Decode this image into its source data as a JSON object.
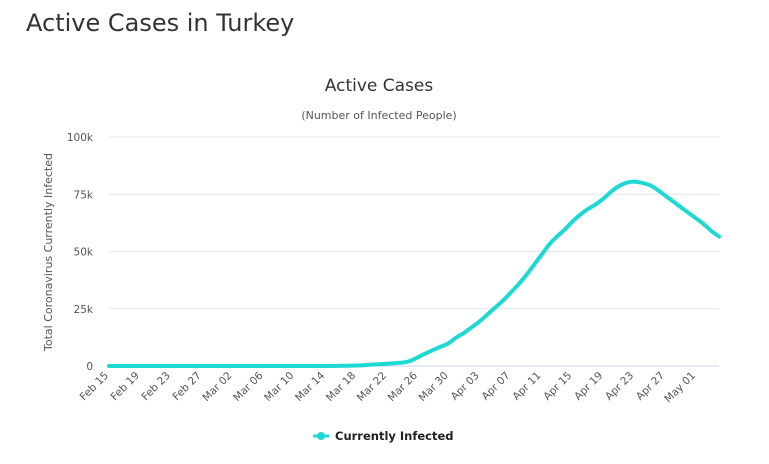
{
  "page": {
    "title": "Active Cases in Turkey"
  },
  "colors": {
    "series": "#1ed9d3",
    "grid": "#e6e6e6",
    "text": "#333333"
  },
  "chart_data": {
    "type": "line",
    "title": "Active Cases",
    "subtitle": "(Number of Infected People)",
    "xlabel": "",
    "ylabel": "Total Coronavirus Currently Infected",
    "ylim": [
      0,
      100000
    ],
    "yticks": [
      0,
      25000,
      50000,
      75000,
      100000
    ],
    "ytick_labels": [
      "0",
      "25k",
      "50k",
      "75k",
      "100k"
    ],
    "x_tick_labels": [
      "Feb 15",
      "Feb 19",
      "Feb 23",
      "Feb 27",
      "Mar 02",
      "Mar 06",
      "Mar 10",
      "Mar 14",
      "Mar 18",
      "Mar 22",
      "Mar 26",
      "Mar 30",
      "Apr 03",
      "Apr 07",
      "Apr 11",
      "Apr 15",
      "Apr 19",
      "Apr 23",
      "Apr 27",
      "May 01"
    ],
    "x": [
      "Feb 15",
      "Mar 10",
      "Mar 14",
      "Mar 18",
      "Mar 20",
      "Mar 22",
      "Mar 24",
      "Mar 25",
      "Mar 26",
      "Mar 27",
      "Mar 28",
      "Mar 29",
      "Mar 30",
      "Mar 31",
      "Apr 01",
      "Apr 02",
      "Apr 03",
      "Apr 04",
      "Apr 05",
      "Apr 06",
      "Apr 07",
      "Apr 08",
      "Apr 09",
      "Apr 10",
      "Apr 11",
      "Apr 12",
      "Apr 13",
      "Apr 14",
      "Apr 15",
      "Apr 16",
      "Apr 17",
      "Apr 18",
      "Apr 19",
      "Apr 20",
      "Apr 21",
      "Apr 22",
      "Apr 23",
      "Apr 24",
      "Apr 25",
      "Apr 26",
      "Apr 27",
      "Apr 28",
      "Apr 29",
      "Apr 30",
      "May 01",
      "May 02",
      "May 03",
      "May 04"
    ],
    "series": [
      {
        "name": "Currently Infected",
        "values": [
          0,
          0,
          0,
          200,
          600,
          1000,
          1500,
          2200,
          3800,
          5500,
          7000,
          8500,
          10000,
          12500,
          14500,
          17000,
          19500,
          22500,
          25500,
          28500,
          32000,
          35500,
          39500,
          44000,
          48500,
          53000,
          56500,
          59500,
          63000,
          66000,
          68500,
          70500,
          73000,
          76000,
          78500,
          80000,
          80500,
          80000,
          79000,
          77000,
          74500,
          72000,
          69500,
          67000,
          64500,
          62000,
          59000,
          56500
        ]
      }
    ],
    "legend_position": "bottom-center",
    "grid": true
  }
}
